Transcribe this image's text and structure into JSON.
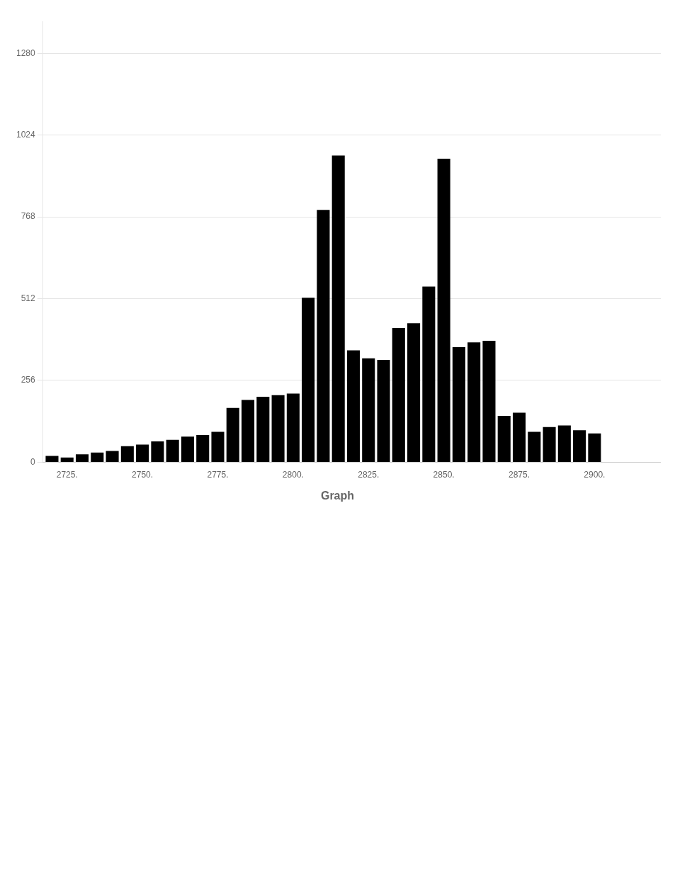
{
  "chart_data": {
    "type": "bar",
    "title": "Graph",
    "x": [
      2720,
      2725,
      2730,
      2735,
      2740,
      2745,
      2750,
      2755,
      2760,
      2765,
      2770,
      2775,
      2780,
      2785,
      2790,
      2795,
      2800,
      2805,
      2810,
      2815,
      2820,
      2825,
      2830,
      2835,
      2840,
      2845,
      2850,
      2855,
      2860,
      2865,
      2870,
      2875,
      2880,
      2885,
      2890,
      2895,
      2900
    ],
    "values": [
      20,
      15,
      25,
      30,
      35,
      50,
      55,
      65,
      70,
      80,
      85,
      95,
      170,
      195,
      205,
      210,
      215,
      515,
      790,
      960,
      350,
      325,
      320,
      420,
      435,
      550,
      950,
      360,
      375,
      380,
      145,
      155,
      95,
      110,
      115,
      100,
      90
    ],
    "color": "#000000",
    "xlim": [
      2717,
      2922
    ],
    "xticks": [
      {
        "value": 2725,
        "label": "2725."
      },
      {
        "value": 2750,
        "label": "2750."
      },
      {
        "value": 2775,
        "label": "2775."
      },
      {
        "value": 2800,
        "label": "2800."
      },
      {
        "value": 2825,
        "label": "2825."
      },
      {
        "value": 2850,
        "label": "2850."
      },
      {
        "value": 2875,
        "label": "2875."
      },
      {
        "value": 2900,
        "label": "2900."
      }
    ],
    "ylim": [
      0,
      1380
    ],
    "yticks": [
      0,
      256,
      512,
      768,
      1024,
      1280
    ],
    "grid": true
  }
}
